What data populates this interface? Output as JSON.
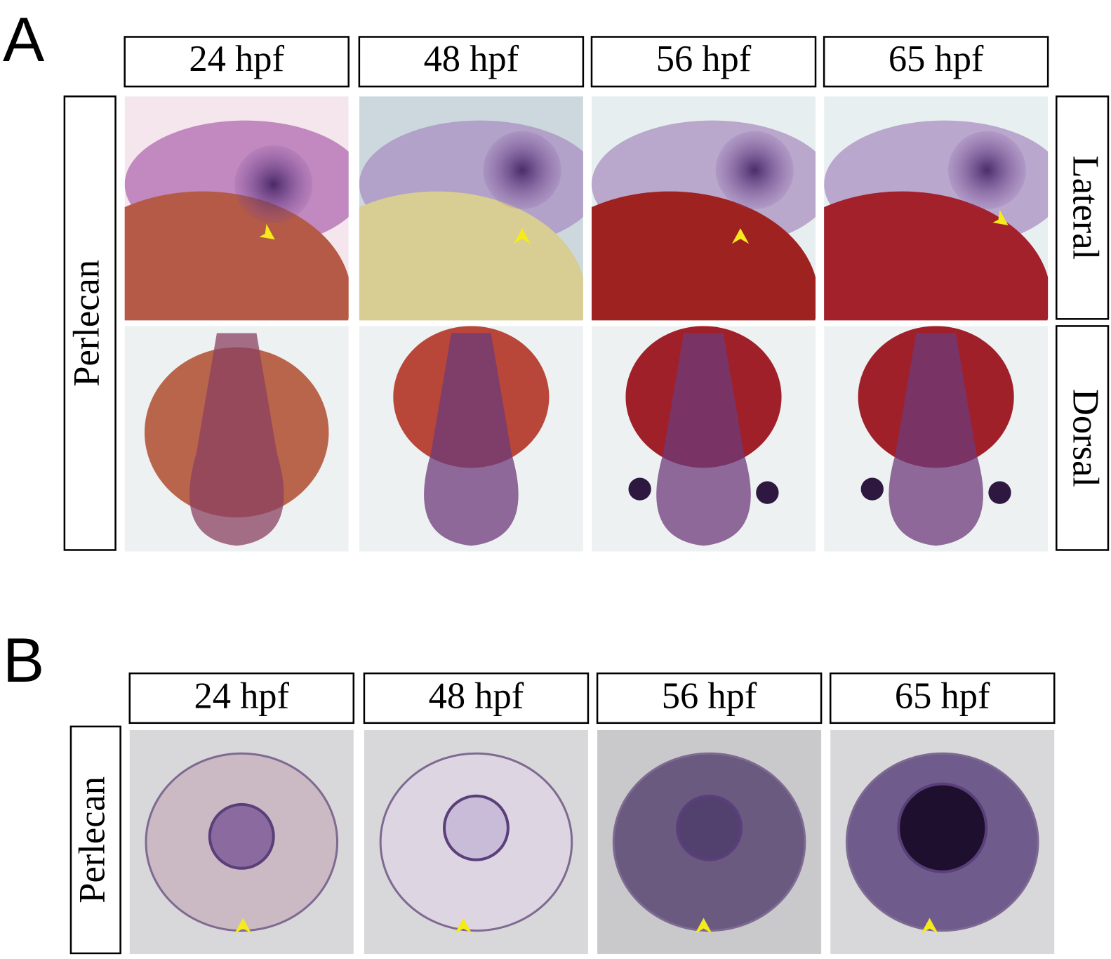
{
  "panels": [
    {
      "label": "A",
      "columns": [
        "24 hpf",
        "48 hpf",
        "56 hpf",
        "65 hpf"
      ],
      "row_label": "Perlecan",
      "views": [
        "Lateral",
        "Dorsal"
      ]
    },
    {
      "label": "B",
      "columns": [
        "24 hpf",
        "48 hpf",
        "56 hpf",
        "65 hpf"
      ],
      "row_label": "Perlecan"
    }
  ]
}
